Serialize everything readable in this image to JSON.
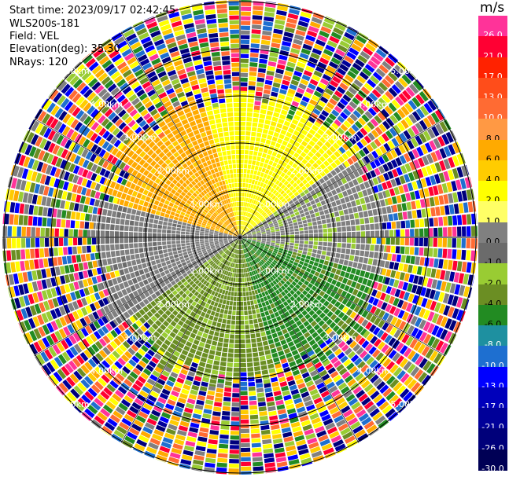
{
  "header": {
    "start_time": "Start time: 2023/09/17 02:42:45",
    "instrument": "WLS200s-181",
    "field": "Field: VEL",
    "elevation": "Elevation(deg): 35.30",
    "nrays": "NRays: 120"
  },
  "colorbar": {
    "unit": "m/s",
    "segments": [
      {
        "label": "26.0",
        "color": "#ff3399"
      },
      {
        "label": "21.0",
        "color": "#ff0033"
      },
      {
        "label": "17.0",
        "color": "#ff2200"
      },
      {
        "label": "13.0",
        "color": "#ff4d1a"
      },
      {
        "label": "10.0",
        "color": "#ff6b33"
      },
      {
        "label": "8.0",
        "color": "#ff9944"
      },
      {
        "label": "6.0",
        "color": "#ffaa00"
      },
      {
        "label": "4.0",
        "color": "#ffcc00"
      },
      {
        "label": "2.0",
        "color": "#ffff00"
      },
      {
        "label": "1.0",
        "color": "#ffff66"
      },
      {
        "label": "0.0",
        "color": "#808080"
      },
      {
        "label": "-1.0",
        "color": "#6b6b6b"
      },
      {
        "label": "-2.0",
        "color": "#99cc33"
      },
      {
        "label": "-4.0",
        "color": "#6b8e23"
      },
      {
        "label": "-6.0",
        "color": "#228b22"
      },
      {
        "label": "-8.0",
        "color": "#1e90a0"
      },
      {
        "label": "-10.0",
        "color": "#1e6fd0"
      },
      {
        "label": "-13.0",
        "color": "#0000ff"
      },
      {
        "label": "-17.0",
        "color": "#0000bb"
      },
      {
        "label": "-21.0",
        "color": "#000099"
      },
      {
        "label": "-26.0",
        "color": "#00007a"
      },
      {
        "label": "-30.0",
        "color": "#000055"
      }
    ]
  },
  "rings": {
    "labels_1km": "1.00km",
    "labels_2km": "2.00km",
    "labels_3km": "3.00km",
    "labels_4km": "4.00km",
    "labels_5km": "5.00km"
  },
  "regions": [
    {
      "name": "north-west-lobe",
      "color": "#ffaa00",
      "alt": "#ffcc00"
    },
    {
      "name": "north-lobe",
      "color": "#ffff00",
      "alt": "#ffee00"
    },
    {
      "name": "east-band",
      "color": "#808080",
      "alt": "#99cc33"
    },
    {
      "name": "south-east-lobe",
      "color": "#228b22",
      "alt": "#6b8e23"
    },
    {
      "name": "south-lobe",
      "color": "#6b8e23",
      "alt": "#99cc33"
    },
    {
      "name": "west-band",
      "color": "#808080",
      "alt": "#6b6b6b"
    }
  ]
}
